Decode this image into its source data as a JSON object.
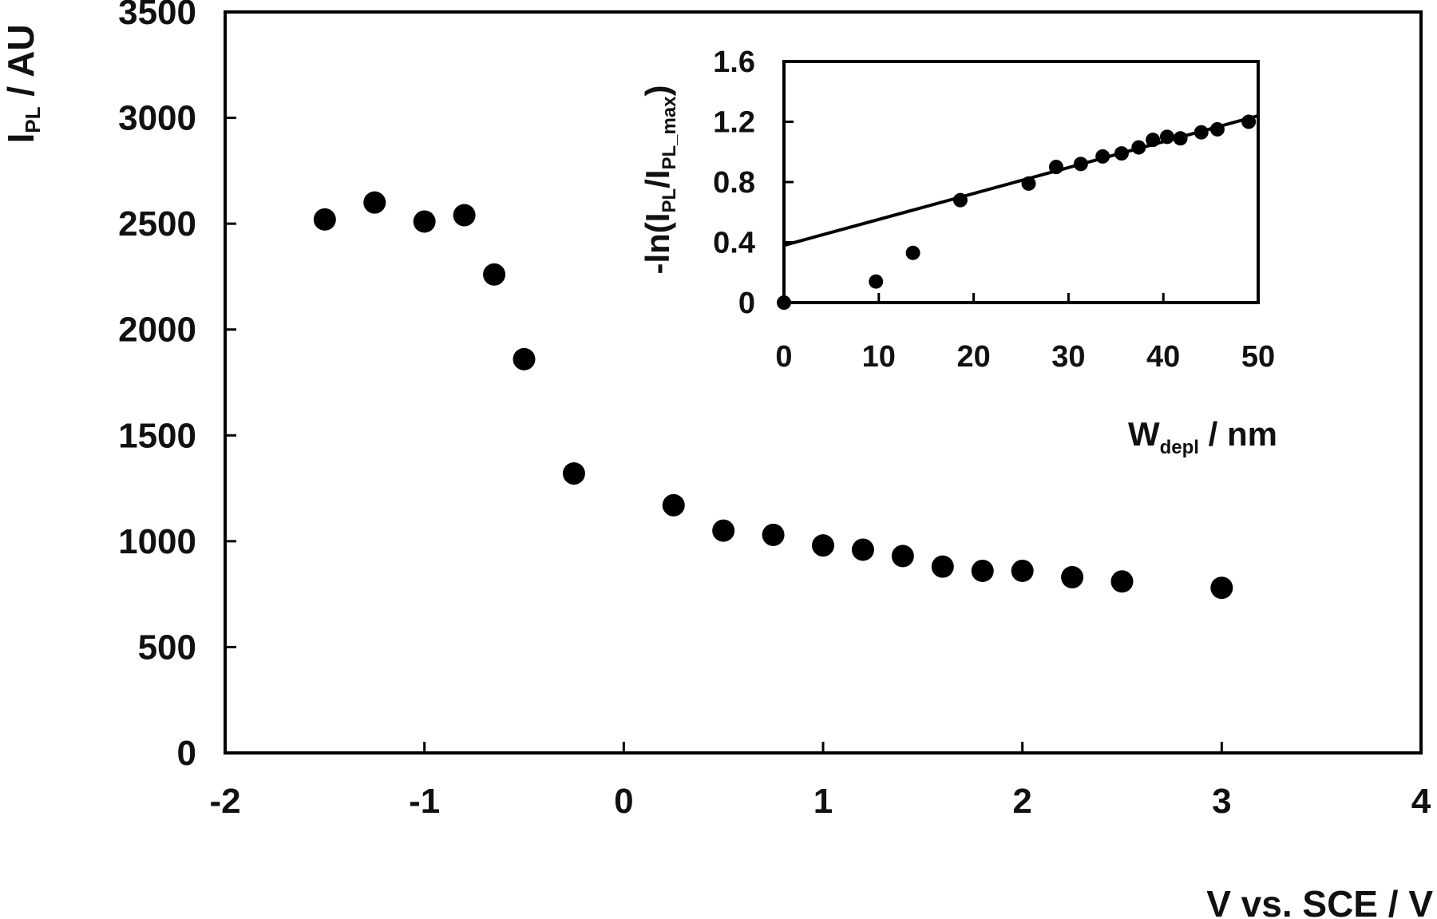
{
  "chart_data": [
    {
      "type": "scatter",
      "xlabel": "V vs. SCE / V",
      "ylabel": {
        "main": "I",
        "sub": "PL",
        "rest": " / AU"
      },
      "xlim": [
        -2,
        4
      ],
      "ylim": [
        0,
        3500
      ],
      "xticks": [
        "-2",
        "-1",
        "0",
        "1",
        "2",
        "3",
        "4"
      ],
      "yticks": [
        "0",
        "500",
        "1000",
        "1500",
        "2000",
        "2500",
        "3000",
        "3500"
      ],
      "x": [
        -1.5,
        -1.25,
        -1.0,
        -0.8,
        -0.65,
        -0.5,
        -0.25,
        0.25,
        0.5,
        0.75,
        1.0,
        1.2,
        1.4,
        1.6,
        1.8,
        2.0,
        2.25,
        2.5,
        3.0
      ],
      "y": [
        2520,
        2600,
        2510,
        2540,
        2260,
        1860,
        1320,
        1170,
        1050,
        1030,
        980,
        960,
        930,
        880,
        860,
        860,
        830,
        810,
        780
      ]
    },
    {
      "type": "scatter",
      "xlabel": {
        "main": "W",
        "sub": "depl",
        "rest": " / nm"
      },
      "ylabel": {
        "p1": "-ln(I",
        "s1": "PL",
        "p2": "/I",
        "s2": "PL_max",
        "p3": ")"
      },
      "xlim": [
        0,
        50
      ],
      "ylim": [
        0,
        1.6
      ],
      "xticks": [
        "0",
        "10",
        "20",
        "30",
        "40",
        "50"
      ],
      "yticks": [
        "0",
        "0.4",
        "0.8",
        "1.2",
        "1.6"
      ],
      "x": [
        0,
        9.7,
        13.6,
        18.6,
        25.8,
        28.7,
        31.3,
        33.6,
        35.6,
        37.4,
        38.9,
        40.4,
        41.8,
        44.0,
        45.7,
        49.0
      ],
      "y": [
        0.0,
        0.14,
        0.33,
        0.68,
        0.79,
        0.9,
        0.92,
        0.97,
        0.99,
        1.03,
        1.08,
        1.1,
        1.09,
        1.13,
        1.15,
        1.2
      ],
      "fit_line": {
        "x": [
          0,
          50
        ],
        "y": [
          0.38,
          1.24
        ]
      }
    }
  ]
}
